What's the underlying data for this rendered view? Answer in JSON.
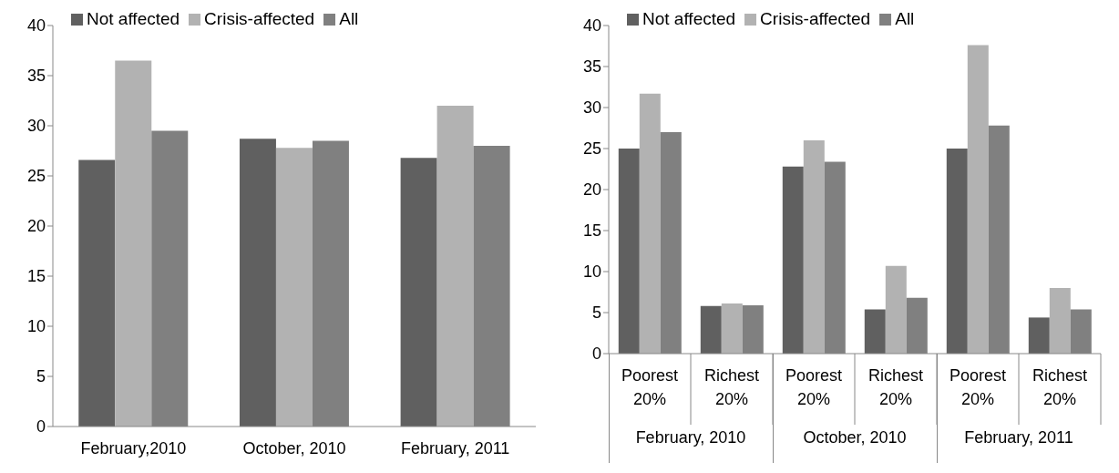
{
  "chart_data": [
    {
      "type": "bar",
      "categories": [
        "February,2010",
        "October, 2010",
        "February, 2011"
      ],
      "series": [
        {
          "name": "Not affected",
          "color": "#606060",
          "values": [
            26.6,
            28.7,
            26.8
          ]
        },
        {
          "name": "Crisis-affected",
          "color": "#b2b2b2",
          "values": [
            36.5,
            27.8,
            32.0
          ]
        },
        {
          "name": "All",
          "color": "#808080",
          "values": [
            29.5,
            28.5,
            28.0
          ]
        }
      ],
      "ylim": [
        0,
        40
      ],
      "yticks": [
        0,
        5,
        10,
        15,
        20,
        25,
        30,
        35,
        40
      ],
      "grid": false,
      "legend": "top"
    },
    {
      "type": "bar",
      "categories": [
        "Poorest 20%",
        "Richest 20%",
        "Poorest 20%",
        "Richest 20%",
        "Poorest 20%",
        "Richest 20%"
      ],
      "series": [
        {
          "name": "Not affected",
          "color": "#606060",
          "values": [
            25.0,
            5.8,
            22.8,
            5.4,
            25.0,
            4.4
          ]
        },
        {
          "name": "Crisis-affected",
          "color": "#b2b2b2",
          "values": [
            31.7,
            6.1,
            26.0,
            10.7,
            37.6,
            8.0
          ]
        },
        {
          "name": "All",
          "color": "#808080",
          "values": [
            27.0,
            5.9,
            23.4,
            6.8,
            27.8,
            5.4
          ]
        }
      ],
      "annotations": [
        "February, 2010",
        "October, 2010",
        "February, 2011"
      ],
      "ylim": [
        0,
        40
      ],
      "yticks": [
        0,
        5,
        10,
        15,
        20,
        25,
        30,
        35,
        40
      ],
      "grid": false,
      "legend": "top"
    }
  ]
}
